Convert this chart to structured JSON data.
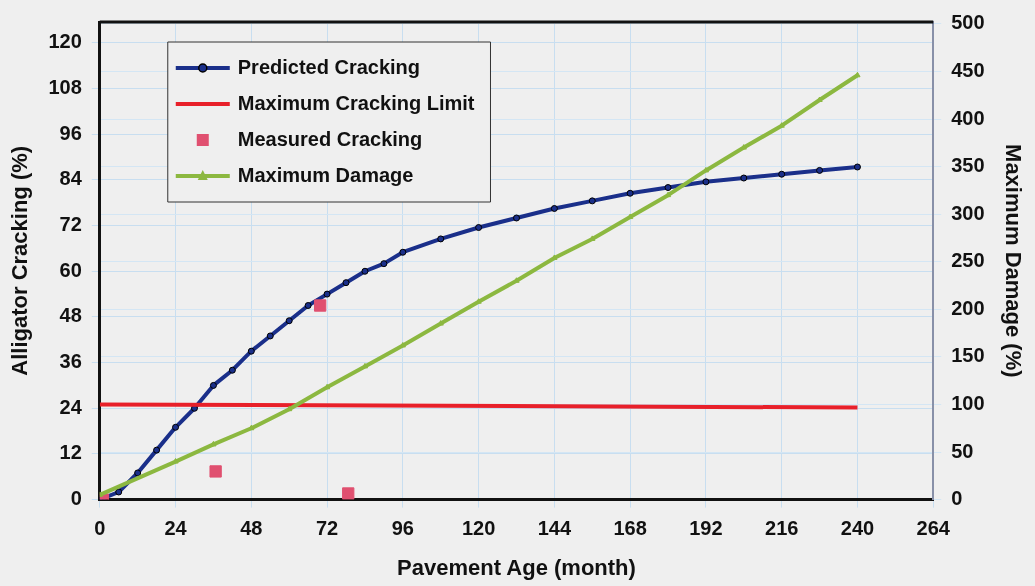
{
  "chart_data": {
    "type": "line",
    "xlabel": "Pavement Age (month)",
    "ylabel": "Alligator Cracking (%)",
    "y2label": "Maximum Damage (%)",
    "xlim": [
      0,
      264
    ],
    "xticks": [
      0,
      24,
      48,
      72,
      96,
      120,
      144,
      168,
      192,
      216,
      240,
      264
    ],
    "ylim": [
      0,
      125.5
    ],
    "yticks": [
      0,
      12,
      24,
      36,
      48,
      60,
      72,
      84,
      96,
      108,
      120
    ],
    "y2lim": [
      0,
      502
    ],
    "y2ticks": [
      0,
      50,
      100,
      150,
      200,
      250,
      300,
      350,
      400,
      450,
      500
    ],
    "grid": true,
    "legend": "top left",
    "series": [
      {
        "name": "Predicted Cracking",
        "color": "#1a2f8a",
        "marker": "circle",
        "x": [
          0,
          6,
          12,
          18,
          24,
          30,
          36,
          42,
          48,
          54,
          60,
          66,
          72,
          78,
          84,
          90,
          96,
          108,
          120,
          132,
          144,
          156,
          168,
          180,
          192,
          204,
          216,
          228,
          240
        ],
        "values": [
          0,
          2,
          7,
          13,
          19,
          24,
          30,
          34,
          39,
          43,
          47,
          51,
          54,
          57,
          60,
          62,
          65,
          68.5,
          71.5,
          74,
          76.5,
          78.5,
          80.5,
          82,
          83.5,
          84.5,
          85.5,
          86.5,
          87.4
        ]
      },
      {
        "name": "Maximum Cracking Limit",
        "color": "#e8202a",
        "marker": "none",
        "x": [
          0,
          240
        ],
        "values": [
          25,
          24.2
        ]
      },
      {
        "name": "Measured Cracking",
        "type": "scatter",
        "color": "#e05070",
        "marker": "square",
        "x": [
          1,
          36.7,
          69.8,
          78.7
        ],
        "values": [
          0,
          7.4,
          51,
          1.6
        ]
      },
      {
        "name": "Maximum Damage",
        "axis": "y2",
        "color": "#8cb840",
        "marker": "triangle",
        "x": [
          0,
          24,
          36,
          48,
          60,
          72,
          84,
          96,
          108,
          120,
          132,
          144,
          156,
          168,
          180,
          192,
          204,
          216,
          228,
          240
        ],
        "values": [
          5,
          40,
          58,
          75,
          95,
          118,
          140,
          162,
          185,
          208,
          230,
          254,
          274,
          297,
          320,
          346,
          370,
          393,
          420,
          446
        ]
      }
    ]
  }
}
